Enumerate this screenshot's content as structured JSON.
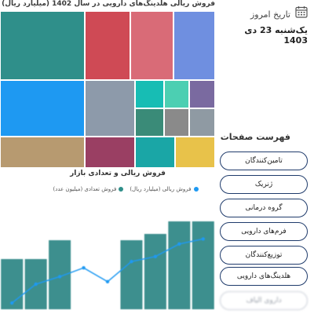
{
  "treemap": {
    "title": "فروش ریالی هلدینگ‌های دارویی در سال 1402 (میلیارد ریال)",
    "tiles": [
      {
        "label": "",
        "color": "#2f8f8a"
      },
      {
        "label": "",
        "color": "#cf4a55"
      },
      {
        "label": "",
        "color": "#d96b77"
      },
      {
        "label": "",
        "color": "#6f8fe0"
      },
      {
        "label": "",
        "color": "#1e99f2"
      },
      {
        "label": "",
        "color": "#8d9aaa"
      },
      {
        "label": "",
        "color": "#17bdb4"
      },
      {
        "label": "",
        "color": "#4ccfb2"
      },
      {
        "label": "",
        "color": "#b79a70"
      },
      {
        "label": "",
        "color": "#9a3f63"
      },
      {
        "label": "",
        "color": "#3a8b78"
      },
      {
        "label": "",
        "color": "#8a8a8a"
      },
      {
        "label": "",
        "color": "#7a6aa0"
      },
      {
        "label": "",
        "color": "#8f9aa3"
      },
      {
        "label": "",
        "color": "#1aa6a6"
      },
      {
        "label": "",
        "color": "#e8c24a"
      }
    ]
  },
  "bar_section": {
    "title": "فروش ریالی و تعدادی بازار",
    "legend": [
      {
        "name": "فروش ریالی (میلیارد ریال)",
        "color": "#1e99f2"
      },
      {
        "name": "فروش تعدادی (میلیون عدد)",
        "color": "#2f8f8a"
      }
    ]
  },
  "chart_data": {
    "type": "bar",
    "title": "فروش ریالی و تعدادی بازار",
    "categories": [
      "",
      "",
      "",
      "",
      "",
      "",
      "",
      "",
      ""
    ],
    "series": [
      {
        "name": "فروش ریالی (میلیارد ریال)",
        "values": [
          40,
          40,
          55,
          0,
          0,
          55,
          60,
          70,
          70
        ]
      },
      {
        "name": "فروش تعدادی (میلیون عدد)",
        "values": [
          5,
          20,
          26,
          33,
          22,
          38,
          42,
          52,
          56
        ]
      }
    ],
    "ylim": [
      0,
      80
    ]
  },
  "sidebar": {
    "date_label": "تاریخ امروز",
    "date_value": "یک‌شنبه 23 دی 1403",
    "pages_title": "فهرست صفحات",
    "items": [
      {
        "label": "تامین‌کنندگان"
      },
      {
        "label": "ژنریک"
      },
      {
        "label": "گروه درمانی"
      },
      {
        "label": "فرم‌های دارویی"
      },
      {
        "label": "توزیع‌کنندگان"
      },
      {
        "label": "هلدینگ‌های دارویی"
      },
      {
        "label": "داروی الیاف"
      }
    ]
  },
  "colors": {
    "accent": "#1f3b6b",
    "bar": "#3d8f8e"
  }
}
